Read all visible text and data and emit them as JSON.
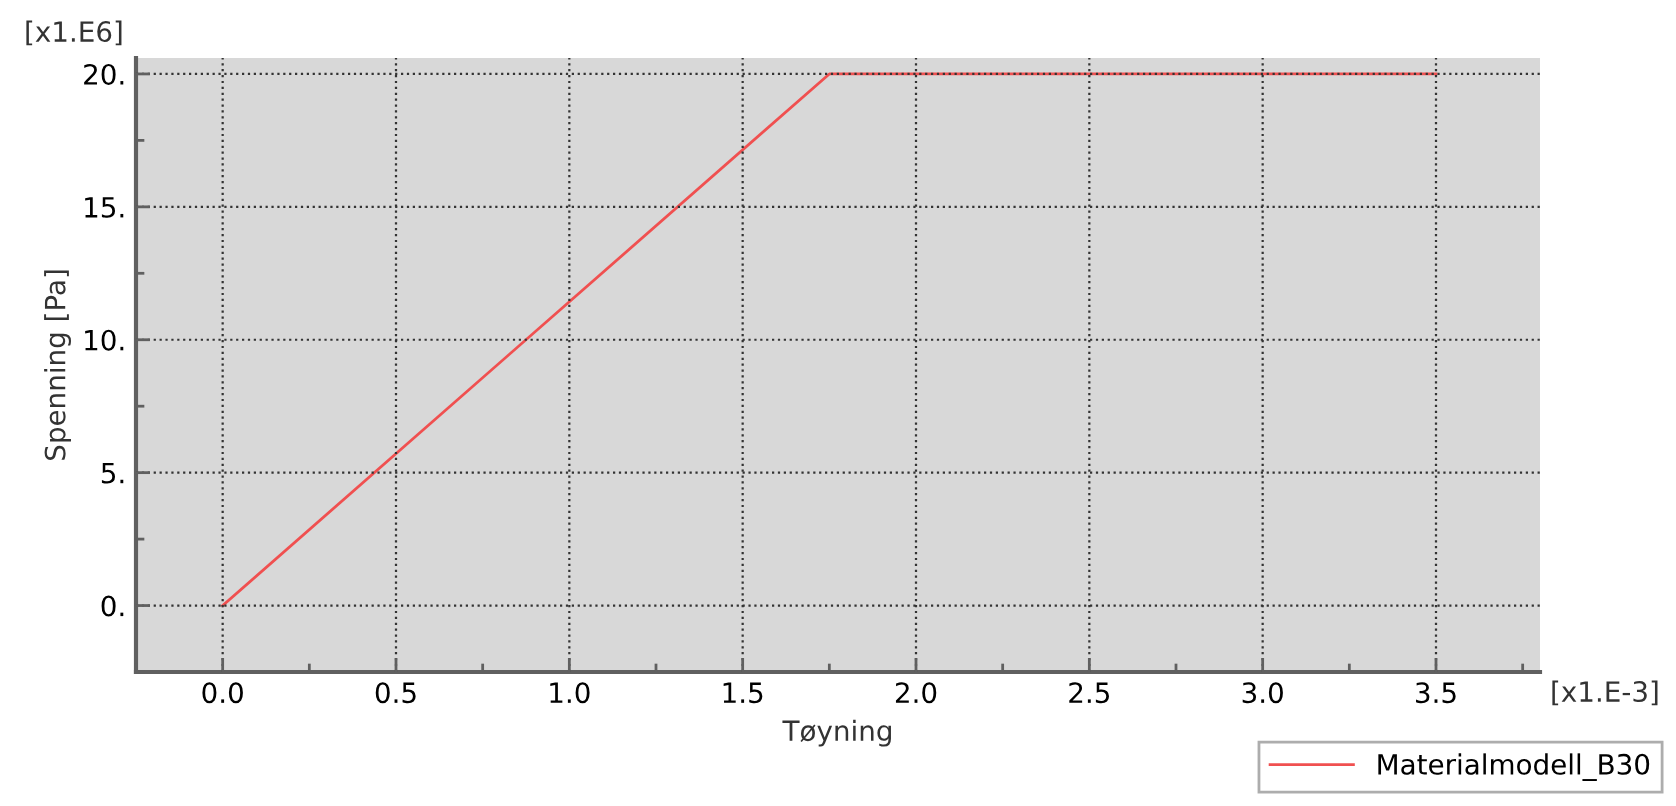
{
  "chart_data": {
    "type": "line",
    "xlabel": "Tøyning",
    "ylabel": "Spenning [Pa]",
    "annotations": [
      "[x1.E6]",
      "[x1.E-3]"
    ],
    "x": [
      0,
      1.75,
      3.5
    ],
    "series": [
      {
        "name": "Materialmodell_B30",
        "color": "#f05050",
        "values": [
          0,
          20,
          20
        ]
      }
    ],
    "xlim": [
      -0.25,
      3.8
    ],
    "xticks": [
      {
        "value": 0,
        "label": "0.0"
      },
      {
        "value": 0.5,
        "label": "0.5"
      },
      {
        "value": 1,
        "label": "1.0"
      },
      {
        "value": 1.5,
        "label": "1.5"
      },
      {
        "value": 2,
        "label": "2.0"
      },
      {
        "value": 2.5,
        "label": "2.5"
      },
      {
        "value": 3,
        "label": "3.0"
      },
      {
        "value": 3.5,
        "label": "3.5"
      }
    ],
    "ylim": [
      -2.5,
      20.6
    ],
    "yticks": [
      {
        "value": 0,
        "label": "0."
      },
      {
        "value": 5,
        "label": "5."
      },
      {
        "value": 10,
        "label": "10."
      },
      {
        "value": 15,
        "label": "15."
      },
      {
        "value": 20,
        "label": "20."
      }
    ],
    "grid": true,
    "legend": "bottom right",
    "marker": "none",
    "line_style": "solid"
  }
}
